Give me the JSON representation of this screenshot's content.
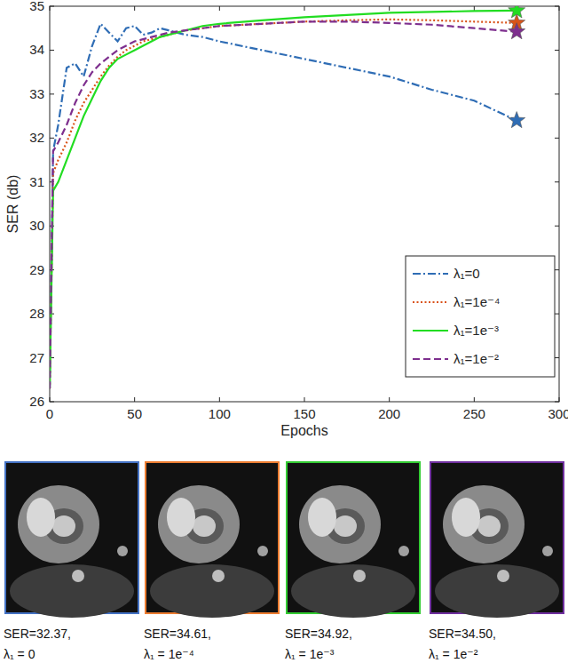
{
  "chart_data": {
    "type": "line",
    "x_label": "Epochs",
    "y_label": "SER (db)",
    "x": [
      0,
      2,
      5,
      10,
      15,
      20,
      25,
      30,
      35,
      40,
      45,
      50,
      55,
      60,
      65,
      70,
      80,
      90,
      100,
      125,
      150,
      175,
      200,
      225,
      250,
      275
    ],
    "xlim": [
      0,
      300
    ],
    "xticks": [
      0,
      50,
      100,
      150,
      200,
      250,
      300
    ],
    "ylim": [
      26,
      35
    ],
    "yticks": [
      26,
      27,
      28,
      29,
      30,
      31,
      32,
      33,
      34,
      35
    ],
    "legend": "right",
    "series": [
      {
        "name": "λ₁=0",
        "color": "#2f6db5",
        "line_style": "dashdot",
        "marker": "star",
        "values": [
          26.3,
          31.7,
          32.3,
          33.6,
          33.7,
          33.4,
          34.1,
          34.6,
          34.4,
          34.2,
          34.5,
          34.55,
          34.35,
          34.4,
          34.5,
          34.45,
          34.35,
          34.3,
          34.2,
          34.0,
          33.8,
          33.6,
          33.4,
          33.1,
          32.85,
          32.4
        ]
      },
      {
        "name": "λ₁=1e⁻⁴",
        "color": "#d95319",
        "line_style": "dotted",
        "marker": "star",
        "values": [
          26.3,
          31.2,
          31.5,
          31.9,
          32.4,
          32.8,
          33.1,
          33.4,
          33.65,
          33.85,
          34.0,
          34.1,
          34.2,
          34.25,
          34.3,
          34.35,
          34.45,
          34.5,
          34.55,
          34.6,
          34.65,
          34.68,
          34.7,
          34.68,
          34.65,
          34.62
        ]
      },
      {
        "name": "λ₁=1e⁻³",
        "color": "#22dd22",
        "line_style": "solid",
        "marker": "star",
        "values": [
          26.3,
          30.8,
          31.0,
          31.5,
          32.0,
          32.5,
          32.9,
          33.3,
          33.6,
          33.8,
          33.9,
          34.0,
          34.1,
          34.2,
          34.3,
          34.35,
          34.45,
          34.55,
          34.6,
          34.68,
          34.75,
          34.8,
          34.85,
          34.87,
          34.89,
          34.9
        ]
      },
      {
        "name": "λ₁=1e⁻²",
        "color": "#7e2f8e",
        "line_style": "dashed",
        "marker": "star",
        "values": [
          26.3,
          31.7,
          31.9,
          32.3,
          32.8,
          33.2,
          33.5,
          33.7,
          33.85,
          34.0,
          34.1,
          34.2,
          34.25,
          34.3,
          34.35,
          34.4,
          34.45,
          34.5,
          34.55,
          34.6,
          34.65,
          34.65,
          34.62,
          34.58,
          34.5,
          34.42
        ]
      }
    ]
  },
  "panels": [
    {
      "caption": "SER=32.37,",
      "label": "λ₁ = 0",
      "color": "#4472c4"
    },
    {
      "caption": "SER=34.61,",
      "label": "λ₁ = 1e⁻⁴",
      "color": "#ed7d31"
    },
    {
      "caption": "SER=34.92,",
      "label": "λ₁ = 1e⁻³",
      "color": "#33cc33"
    },
    {
      "caption": "SER=34.50,",
      "label": "λ₁ = 1e⁻²",
      "color": "#7030a0"
    }
  ]
}
